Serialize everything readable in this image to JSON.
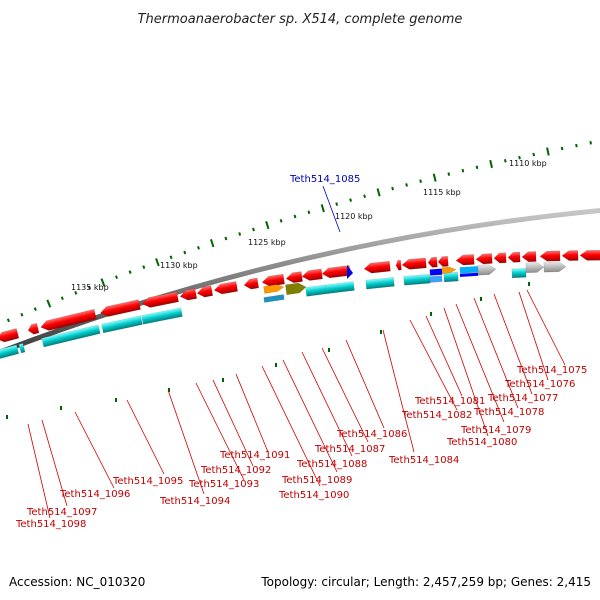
{
  "title": "Thermoanaerobacter sp. X514, complete genome",
  "footer": {
    "accession": "Accession: NC_010320",
    "summary": "Topology: circular; Length: 2,457,259 bp; Genes: 2,415"
  },
  "scale_labels": [
    "1110 kbp",
    "1115 kbp",
    "1120 kbp",
    "1125 kbp",
    "1130 kbp",
    "1135 kbp"
  ],
  "highlighted_gene": "Teth514_1085",
  "gene_labels": [
    "Teth514_1075",
    "Teth514_1076",
    "Teth514_1077",
    "Teth514_1078",
    "Teth514_1079",
    "Teth514_1080",
    "Teth514_1081",
    "Teth514_1082",
    "Teth514_1084",
    "Teth514_1086",
    "Teth514_1087",
    "Teth514_1088",
    "Teth514_1089",
    "Teth514_1090",
    "Teth514_1091",
    "Teth514_1092",
    "Teth514_1093",
    "Teth514_1094",
    "Teth514_1095",
    "Teth514_1096",
    "Teth514_1097",
    "Teth514_1098"
  ],
  "colors": {
    "gene": "#ff0000",
    "cds": "#00c8c8",
    "backbone": "#808080",
    "tick": "#006400",
    "leader": "#d00000",
    "highlight": "#0000cc",
    "orange": "#ff9900",
    "olive": "#808000",
    "grey_gene": "#b4b4b4"
  }
}
